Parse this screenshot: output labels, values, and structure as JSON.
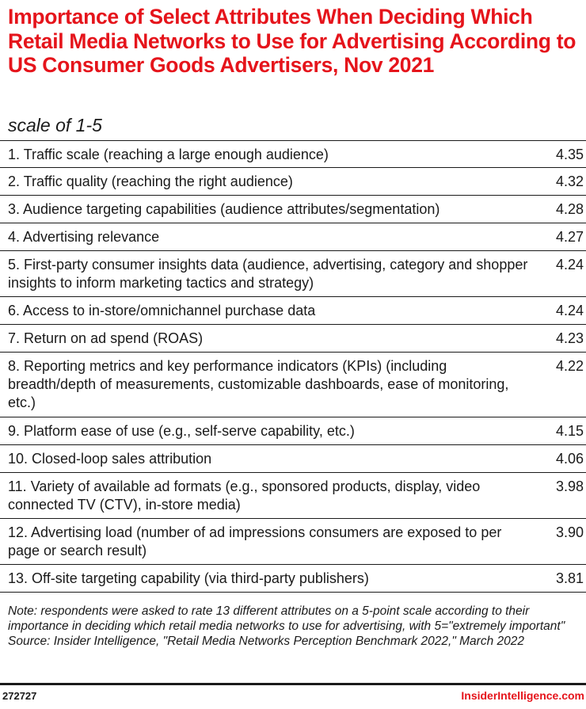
{
  "chart_data": {
    "type": "table",
    "title": "Importance of Select Attributes When Deciding Which Retail Media Networks to Use for Advertising According to US Consumer Goods Advertisers, Nov 2021",
    "subtitle": "scale of 1-5",
    "rows": [
      {
        "label": "1. Traffic scale (reaching a large enough audience)",
        "value": "4.35"
      },
      {
        "label": "2. Traffic quality (reaching the right audience)",
        "value": "4.32"
      },
      {
        "label": "3. Audience targeting capabilities (audience attributes/segmentation)",
        "value": "4.28"
      },
      {
        "label": "4. Advertising relevance",
        "value": "4.27"
      },
      {
        "label": "5. First-party consumer insights data (audience,  advertising, category and shopper insights to inform marketing tactics and strategy)",
        "value": "4.24"
      },
      {
        "label": "6. Access to in-store/omnichannel purchase data",
        "value": "4.24"
      },
      {
        "label": "7. Return on ad spend (ROAS)",
        "value": "4.23"
      },
      {
        "label": "8. Reporting metrics and key performance indicators (KPIs) (including breadth/depth of measurements, customizable dashboards, ease of monitoring, etc.)",
        "value": "4.22"
      },
      {
        "label": "9. Platform ease of use (e.g., self-serve capability, etc.)",
        "value": "4.15"
      },
      {
        "label": "10. Closed-loop sales attribution",
        "value": "4.06"
      },
      {
        "label": "11. Variety of available ad formats (e.g., sponsored products, display, video connected TV (CTV), in-store media)",
        "value": "3.98"
      },
      {
        "label": "12. Advertising load (number of ad impressions consumers are exposed to per page or search result)",
        "value": "3.90"
      },
      {
        "label": "13. Off-site targeting capability (via third-party publishers)",
        "value": "3.81"
      }
    ]
  },
  "footer": {
    "note": "Note: respondents were asked to rate 13 different attributes on a 5-point scale according to their importance in deciding which retail media networks to use for advertising, with 5=\"extremely important\"",
    "source": "Source: Insider Intelligence, \"Retail Media Networks Perception Benchmark 2022,\" March 2022",
    "chart_id": "272727",
    "brand": "InsiderIntelligence.com"
  },
  "colors": {
    "accent": "#e5141b",
    "text": "#1a1a1a"
  }
}
